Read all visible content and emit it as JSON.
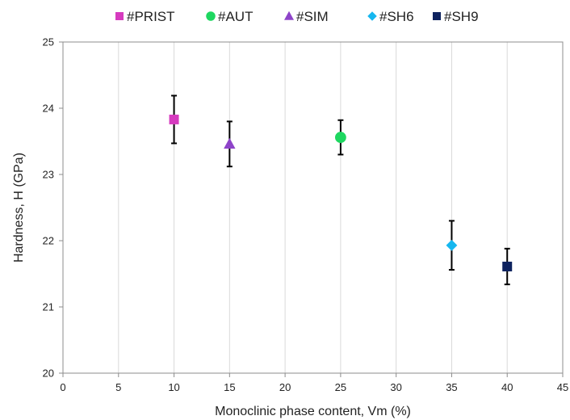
{
  "chart_data": {
    "type": "scatter",
    "xlabel": "Monoclinic phase content, Vm (%)",
    "ylabel": "Hardness, H (GPa)",
    "xlim": [
      0,
      45
    ],
    "ylim": [
      20,
      25
    ],
    "xticks": [
      0,
      5,
      10,
      15,
      20,
      25,
      30,
      35,
      40,
      45
    ],
    "yticks": [
      20,
      21,
      22,
      23,
      24,
      25
    ],
    "grid": "vertical",
    "legend_position": "top",
    "series": [
      {
        "name": "#PRIST",
        "marker": "square",
        "color": "#d63bbf",
        "x": 10,
        "y": 23.83,
        "err": 0.36
      },
      {
        "name": "#AUT",
        "marker": "circle",
        "color": "#1ed760",
        "x": 25,
        "y": 23.56,
        "err": 0.26
      },
      {
        "name": "#SIM",
        "marker": "triangle",
        "color": "#8e44c9",
        "x": 15,
        "y": 23.46,
        "err": 0.34
      },
      {
        "name": "#SH6",
        "marker": "diamond",
        "color": "#16b7ef",
        "x": 35,
        "y": 21.93,
        "err": 0.37
      },
      {
        "name": "#SH9",
        "marker": "square",
        "color": "#0e235f",
        "x": 40,
        "y": 21.61,
        "err": 0.27
      }
    ]
  }
}
